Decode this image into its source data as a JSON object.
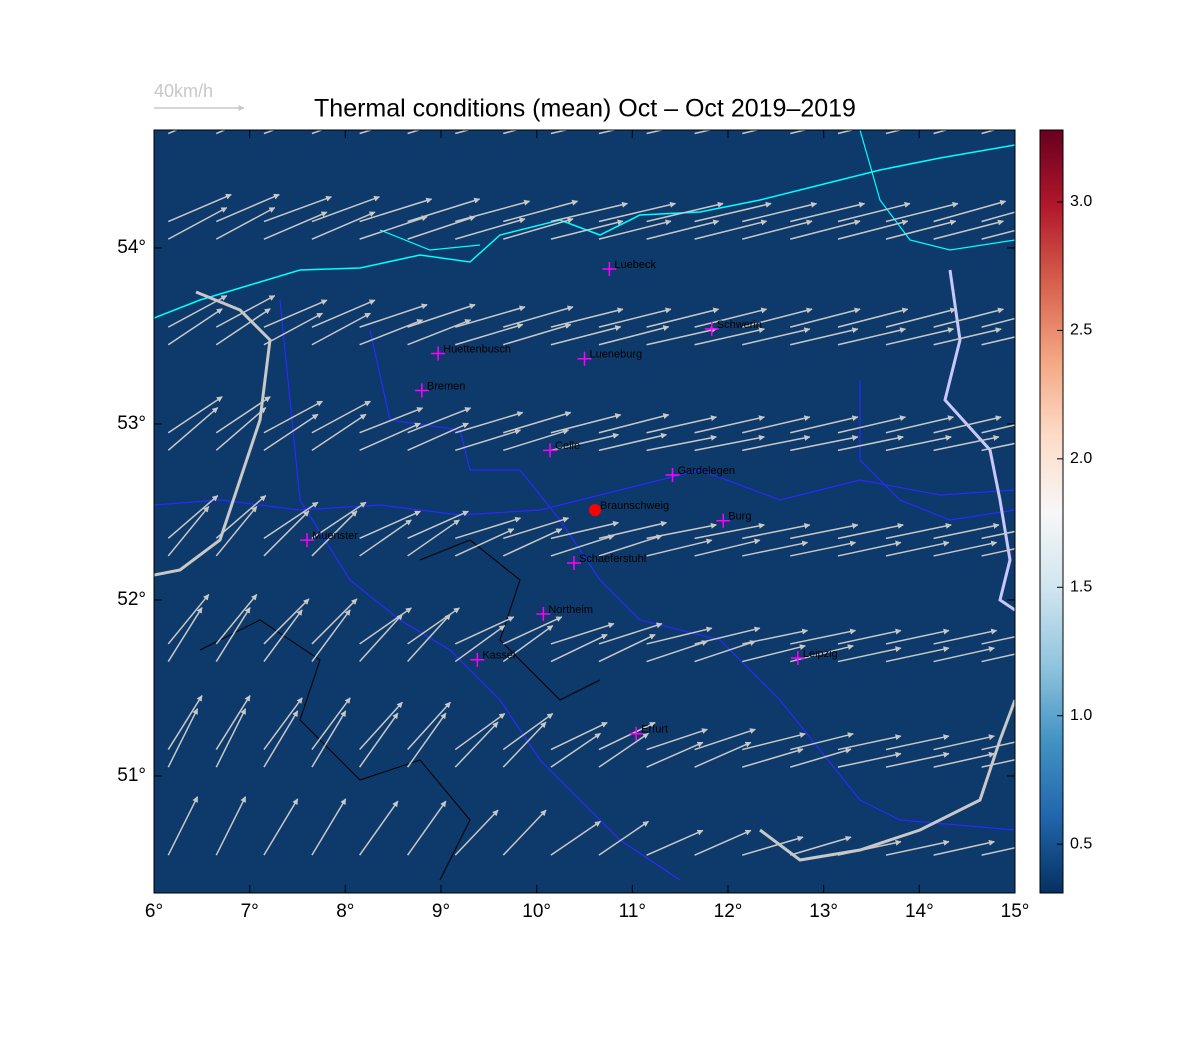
{
  "chart_data": {
    "type": "map",
    "title": "Thermal conditions (mean) Oct – Oct  2019–2019",
    "reference_vector": {
      "value": 40,
      "label": "40km/h"
    },
    "background_color": "#0d3a6a",
    "xlim": [
      6,
      15
    ],
    "ylim": [
      50.335,
      54.67
    ],
    "xticks": [
      {
        "value": 6,
        "label": "6°"
      },
      {
        "value": 7,
        "label": "7°"
      },
      {
        "value": 8,
        "label": "8°"
      },
      {
        "value": 9,
        "label": "9°"
      },
      {
        "value": 10,
        "label": "10°"
      },
      {
        "value": 11,
        "label": "11°"
      },
      {
        "value": 12,
        "label": "12°"
      },
      {
        "value": 13,
        "label": "13°"
      },
      {
        "value": 14,
        "label": "14°"
      },
      {
        "value": 15,
        "label": "15°"
      }
    ],
    "yticks": [
      {
        "value": 51,
        "label": "51°"
      },
      {
        "value": 52,
        "label": "52°"
      },
      {
        "value": 53,
        "label": "53°"
      },
      {
        "value": 54,
        "label": "54°"
      }
    ],
    "colorbar": {
      "clim": [
        0.31,
        3.28
      ],
      "colors": [
        "#053061",
        "#2166ac",
        "#4393c3",
        "#92c5de",
        "#d1e5f0",
        "#f7f7f7",
        "#fddbc7",
        "#f4a582",
        "#d6604d",
        "#b2182b",
        "#67001f"
      ],
      "ticks": [
        0.5,
        {
          "value": 1,
          "label": "1.0"
        },
        1.5,
        {
          "value": 2,
          "label": "2.0"
        },
        2.5,
        {
          "value": 3,
          "label": "3.0"
        }
      ]
    },
    "cities": [
      {
        "name": "Luebeck",
        "lon": 10.76,
        "lat": 53.88,
        "marker": "plus",
        "color": "#ff00ff"
      },
      {
        "name": "Schwerin",
        "lon": 11.83,
        "lat": 53.54,
        "marker": "plus",
        "color": "#ff00ff"
      },
      {
        "name": "Lueneburg",
        "lon": 10.5,
        "lat": 53.37,
        "marker": "plus",
        "color": "#ff00ff"
      },
      {
        "name": "Huettenbusch",
        "lon": 8.97,
        "lat": 53.4,
        "marker": "plus",
        "color": "#ff00ff"
      },
      {
        "name": "Bremen",
        "lon": 8.8,
        "lat": 53.19,
        "marker": "plus",
        "color": "#ff00ff"
      },
      {
        "name": "Celle",
        "lon": 10.14,
        "lat": 52.85,
        "marker": "plus",
        "color": "#ff00ff"
      },
      {
        "name": "Gardelegen",
        "lon": 11.42,
        "lat": 52.71,
        "marker": "plus",
        "color": "#ff00ff"
      },
      {
        "name": "Braunschweig",
        "lon": 10.61,
        "lat": 52.51,
        "marker": "circle",
        "color": "#ff0000"
      },
      {
        "name": "Burg",
        "lon": 11.95,
        "lat": 52.45,
        "marker": "plus",
        "color": "#ff00ff"
      },
      {
        "name": "Muenster",
        "lon": 7.6,
        "lat": 52.34,
        "marker": "plus",
        "color": "#ff00ff"
      },
      {
        "name": "Schaeferstuhl",
        "lon": 10.39,
        "lat": 52.21,
        "marker": "plus",
        "color": "#ff00ff"
      },
      {
        "name": "Northeim",
        "lon": 10.07,
        "lat": 51.92,
        "marker": "plus",
        "color": "#ff00ff"
      },
      {
        "name": "Kassel",
        "lon": 9.38,
        "lat": 51.66,
        "marker": "plus",
        "color": "#ff00ff"
      },
      {
        "name": "Leipzig",
        "lon": 12.73,
        "lat": 51.67,
        "marker": "plus",
        "color": "#ff00ff"
      },
      {
        "name": "Erfurt",
        "lon": 11.04,
        "lat": 51.24,
        "marker": "plus",
        "color": "#ff00ff"
      }
    ],
    "wind": {
      "color": "#c8c8c8",
      "lon": [
        6.4,
        7.4,
        8.4,
        9.4,
        10.4,
        11.4,
        12.4,
        13.4,
        14.4
      ],
      "lat": [
        54.4,
        53.8,
        53.2,
        52.6,
        52.0,
        51.4,
        50.8
      ],
      "u": [
        [
          28,
          30,
          32,
          33,
          34,
          34,
          33,
          32,
          32
        ],
        [
          26,
          28,
          30,
          31,
          32,
          32,
          31,
          31,
          31
        ],
        [
          24,
          26,
          28,
          30,
          31,
          31,
          30,
          30,
          30
        ],
        [
          22,
          24,
          27,
          29,
          30,
          31,
          30,
          29,
          29
        ],
        [
          18,
          20,
          23,
          26,
          28,
          29,
          29,
          28,
          28
        ],
        [
          15,
          17,
          19,
          22,
          25,
          27,
          28,
          28,
          27
        ],
        [
          13,
          15,
          17,
          19,
          22,
          25,
          27,
          28,
          27
        ]
      ],
      "v": [
        [
          12,
          11,
          10,
          9,
          8,
          8,
          8,
          8,
          9
        ],
        [
          14,
          12,
          10,
          9,
          8,
          8,
          8,
          8,
          8
        ],
        [
          16,
          14,
          11,
          9,
          8,
          7,
          7,
          7,
          7
        ],
        [
          19,
          16,
          12,
          9,
          7,
          6,
          6,
          6,
          6
        ],
        [
          22,
          20,
          16,
          12,
          9,
          7,
          6,
          6,
          6
        ],
        [
          24,
          23,
          21,
          16,
          12,
          9,
          7,
          6,
          6
        ],
        [
          26,
          25,
          24,
          20,
          15,
          11,
          8,
          6,
          6
        ]
      ]
    }
  }
}
